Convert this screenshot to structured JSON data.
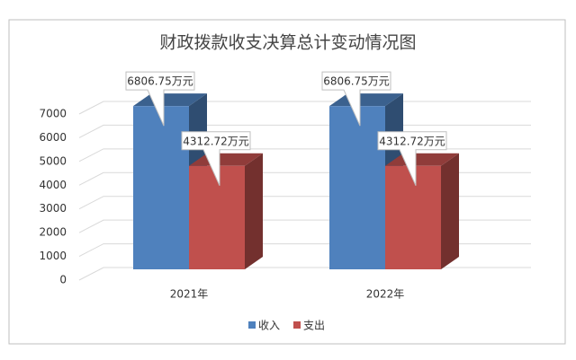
{
  "chart_data": {
    "type": "bar3d",
    "title": "财政拨款收支决算总计变动情况图",
    "categories": [
      "2021年",
      "2022年"
    ],
    "series": [
      {
        "name": "收入",
        "color": "#4f81bd",
        "values": [
          6806.75,
          6806.75
        ],
        "value_labels": [
          "6806.75万元",
          "6806.75万元"
        ]
      },
      {
        "name": "支出",
        "color": "#c0504d",
        "values": [
          4312.72,
          4312.72
        ],
        "value_labels": [
          "4312.72万元",
          "4312.72万元"
        ]
      }
    ],
    "ylim": [
      0,
      7000
    ],
    "yticks": [
      0,
      1000,
      2000,
      3000,
      4000,
      5000,
      6000,
      7000
    ],
    "grid": true,
    "legend": "bottom"
  }
}
